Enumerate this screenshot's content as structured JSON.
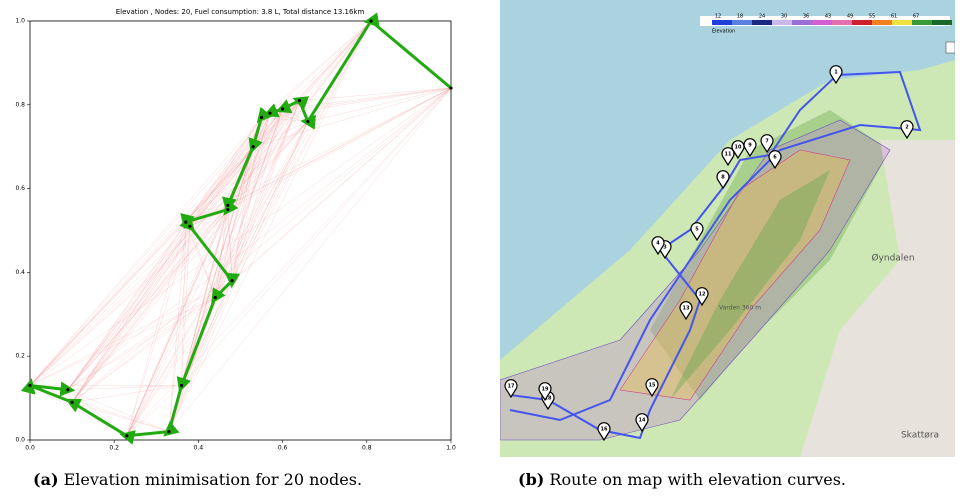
{
  "chart_data": {
    "type": "line",
    "title": "Elevation , Nodes: 20, Fuel consumption: 3.8 L, Total distance 13.16km",
    "x": [
      1.0,
      0.81,
      0.66,
      0.64,
      0.6,
      0.57,
      0.55,
      0.53,
      0.47,
      0.47,
      0.37,
      0.38,
      0.48,
      0.44,
      0.36,
      0.33,
      0.23,
      0.1,
      0.0,
      0.09
    ],
    "y": [
      0.84,
      1.0,
      0.76,
      0.81,
      0.79,
      0.78,
      0.77,
      0.7,
      0.56,
      0.55,
      0.52,
      0.51,
      0.38,
      0.34,
      0.13,
      0.02,
      0.01,
      0.09,
      0.13,
      0.12
    ],
    "color": "#22aa11",
    "edge_color": "#f08080",
    "point_color": "#000000",
    "xlim": [
      0,
      1
    ],
    "ylim": [
      0,
      1
    ],
    "xticks": [
      {
        "value": 0,
        "label": "0.0"
      },
      {
        "value": 0.2,
        "label": "0.2"
      },
      {
        "value": 0.4,
        "label": "0.4"
      },
      {
        "value": 0.6,
        "label": "0.6"
      },
      {
        "value": 0.8,
        "label": "0.8"
      },
      {
        "value": 1,
        "label": "1.0"
      }
    ],
    "yticks": [
      {
        "value": 0,
        "label": "0.0"
      },
      {
        "value": 0.2,
        "label": "0.2"
      },
      {
        "value": 0.4,
        "label": "0.4"
      },
      {
        "value": 0.6,
        "label": "0.6"
      },
      {
        "value": 0.8,
        "label": "0.8"
      },
      {
        "value": 1,
        "label": "1.0"
      }
    ]
  },
  "map": {
    "legend": {
      "title": "Elevation",
      "labels": [
        "12",
        "18",
        "24",
        "30",
        "36",
        "43",
        "49",
        "55",
        "61",
        "67"
      ],
      "colors": [
        "#1f3fd8",
        "#5a7fe0",
        "#1a2a80",
        "#c9b8e8",
        "#9c6fd6",
        "#d05fd0",
        "#e070b0",
        "#d02030",
        "#f08020",
        "#f0e040",
        "#3a9a3a",
        "#1a6a2a"
      ]
    },
    "places": [
      "Øyndalen",
      "Skattøra",
      "Varden 360 m"
    ],
    "markers": [
      "1",
      "2",
      "3",
      "4",
      "5",
      "6",
      "7",
      "8",
      "9",
      "10",
      "11",
      "12",
      "13",
      "14",
      "15",
      "16",
      "17",
      "18",
      "19"
    ]
  },
  "captions": [
    {
      "label": "(a)",
      "text": "Elevation minimisation for 20 nodes."
    },
    {
      "label": "(b)",
      "text": "Route on map with elevation curves."
    }
  ]
}
